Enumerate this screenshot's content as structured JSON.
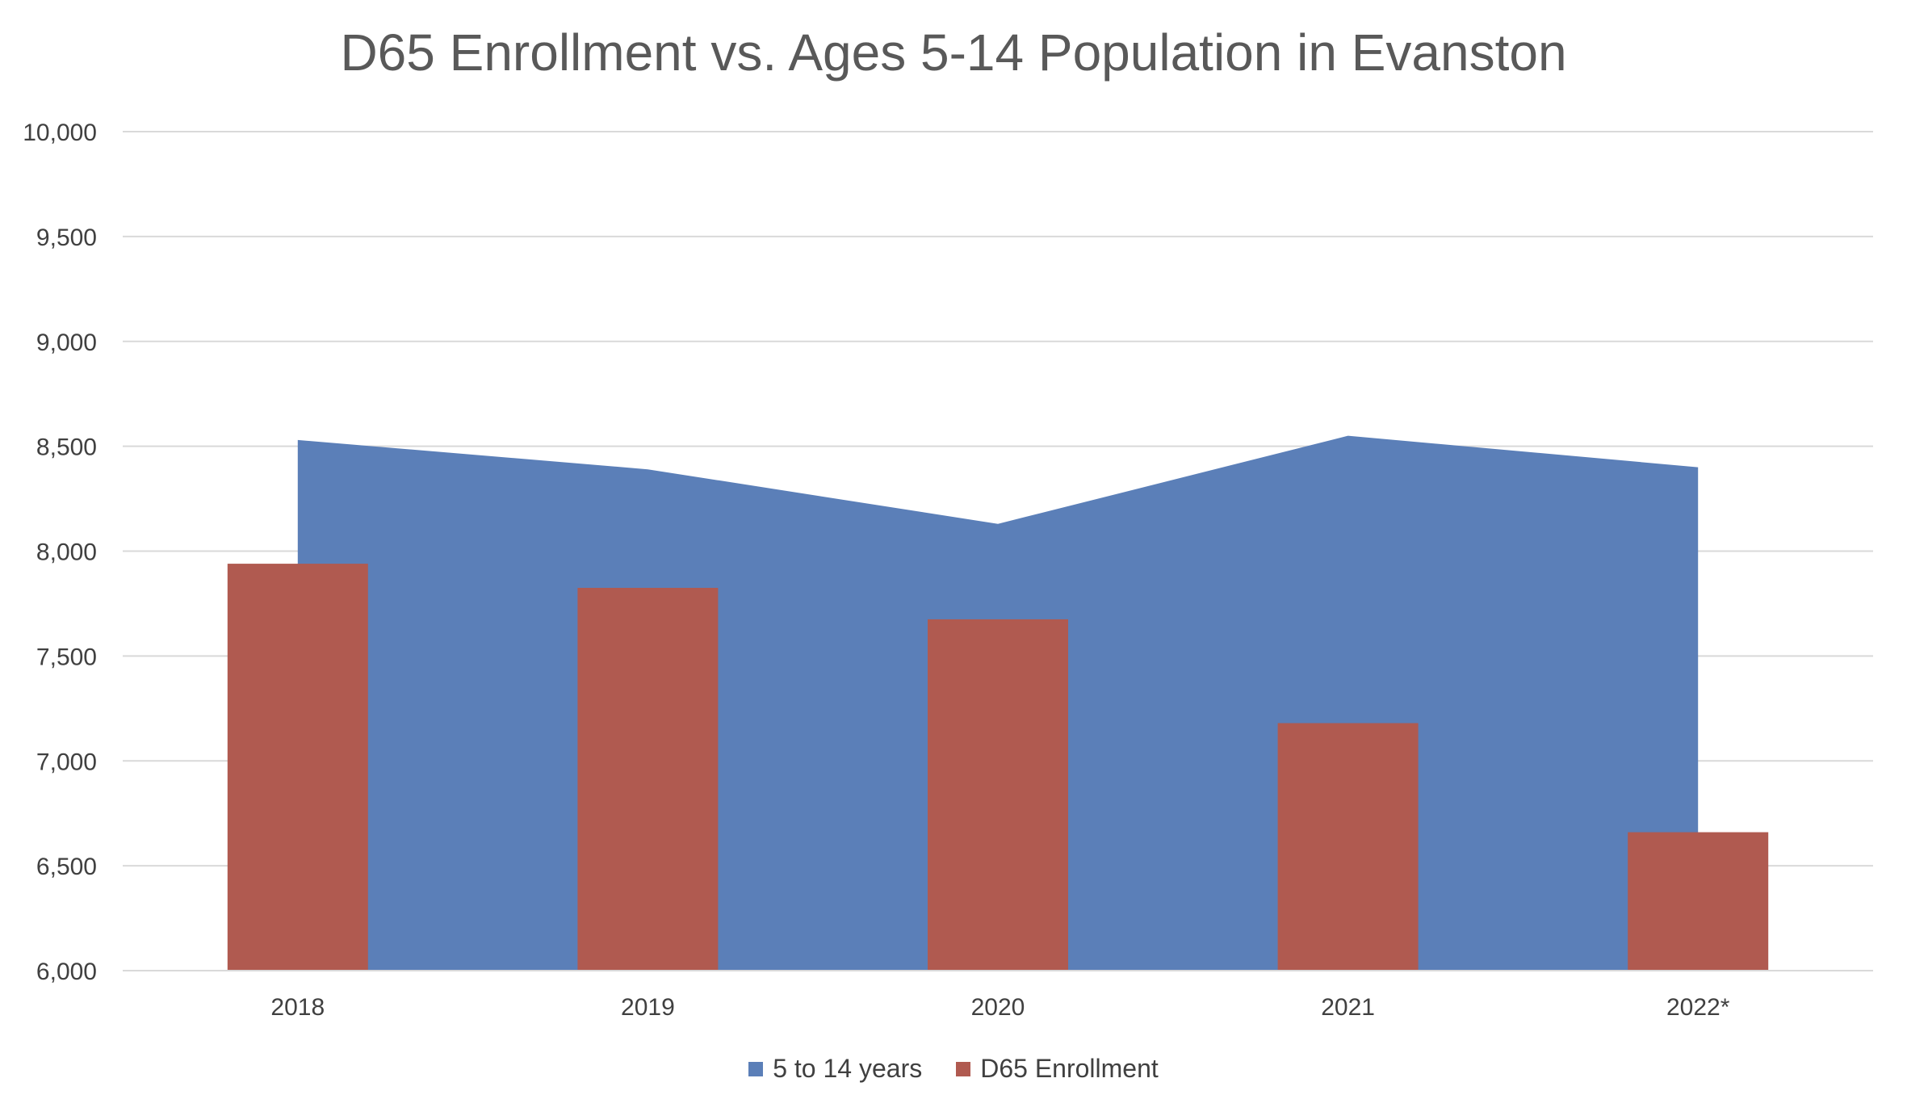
{
  "chart_data": {
    "type": "bar",
    "title": "D65 Enrollment vs. Ages 5-14 Population in Evanston",
    "categories": [
      "2018",
      "2019",
      "2020",
      "2021",
      "2022*"
    ],
    "series": [
      {
        "name": "5 to 14 years",
        "chart_type": "area",
        "color": "#5B7FB8",
        "values": [
          8530,
          8390,
          8130,
          8550,
          8400
        ]
      },
      {
        "name": "D65 Enrollment",
        "chart_type": "bar",
        "color": "#B05A50",
        "values": [
          7940,
          7825,
          7675,
          7180,
          6660
        ]
      }
    ],
    "ylim": [
      6000,
      10000
    ],
    "yticks": [
      "6,000",
      "6,500",
      "7,000",
      "7,500",
      "8,000",
      "8,500",
      "9,000",
      "9,500",
      "10,000"
    ],
    "ytick_values": [
      6000,
      6500,
      7000,
      7500,
      8000,
      8500,
      9000,
      9500,
      10000
    ],
    "xlabel": "",
    "ylabel": "",
    "grid": true,
    "legend_position": "bottom"
  }
}
